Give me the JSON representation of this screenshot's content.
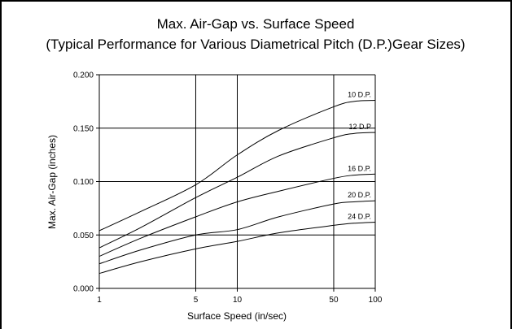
{
  "chart_data": {
    "type": "line",
    "title": "Max. Air-Gap vs. Surface Speed",
    "subtitle": "(Typical Performance for Various Diametrical Pitch (D.P.)Gear Sizes)",
    "xlabel": "Surface Speed (in/sec)",
    "ylabel": "Max. Air-Gap (inches)",
    "x_scale": "log",
    "xlim": [
      1,
      100
    ],
    "ylim": [
      0,
      0.2
    ],
    "x_ticks": [
      1,
      5,
      10,
      50,
      100
    ],
    "x_tick_labels": [
      "1",
      "5",
      "10",
      "50",
      "100"
    ],
    "y_ticks": [
      0,
      0.05,
      0.1,
      0.15,
      0.2
    ],
    "y_tick_labels": [
      "0.000",
      "0.050",
      "0.100",
      "0.150",
      "0.200"
    ],
    "grid": true,
    "legend": "inline labels at right end of each line",
    "series": [
      {
        "name": "10 D.P.",
        "x": [
          1,
          2,
          5,
          10,
          20,
          50,
          70,
          100
        ],
        "y": [
          0.054,
          0.072,
          0.097,
          0.125,
          0.148,
          0.17,
          0.175,
          0.176
        ]
      },
      {
        "name": "12 D.P",
        "x": [
          1,
          2,
          5,
          10,
          20,
          50,
          70,
          100
        ],
        "y": [
          0.038,
          0.057,
          0.085,
          0.104,
          0.124,
          0.141,
          0.145,
          0.146
        ]
      },
      {
        "name": "16 D.P.",
        "x": [
          1,
          2,
          5,
          10,
          20,
          50,
          70,
          100
        ],
        "y": [
          0.03,
          0.047,
          0.067,
          0.081,
          0.091,
          0.103,
          0.106,
          0.107
        ]
      },
      {
        "name": "20 D.P.",
        "x": [
          1,
          2,
          5,
          10,
          20,
          50,
          70,
          100
        ],
        "y": [
          0.023,
          0.036,
          0.05,
          0.055,
          0.067,
          0.079,
          0.081,
          0.082
        ]
      },
      {
        "name": "24 D.P.",
        "x": [
          1,
          2,
          5,
          10,
          20,
          50,
          70,
          100
        ],
        "y": [
          0.014,
          0.025,
          0.037,
          0.044,
          0.052,
          0.059,
          0.061,
          0.062
        ]
      }
    ]
  }
}
